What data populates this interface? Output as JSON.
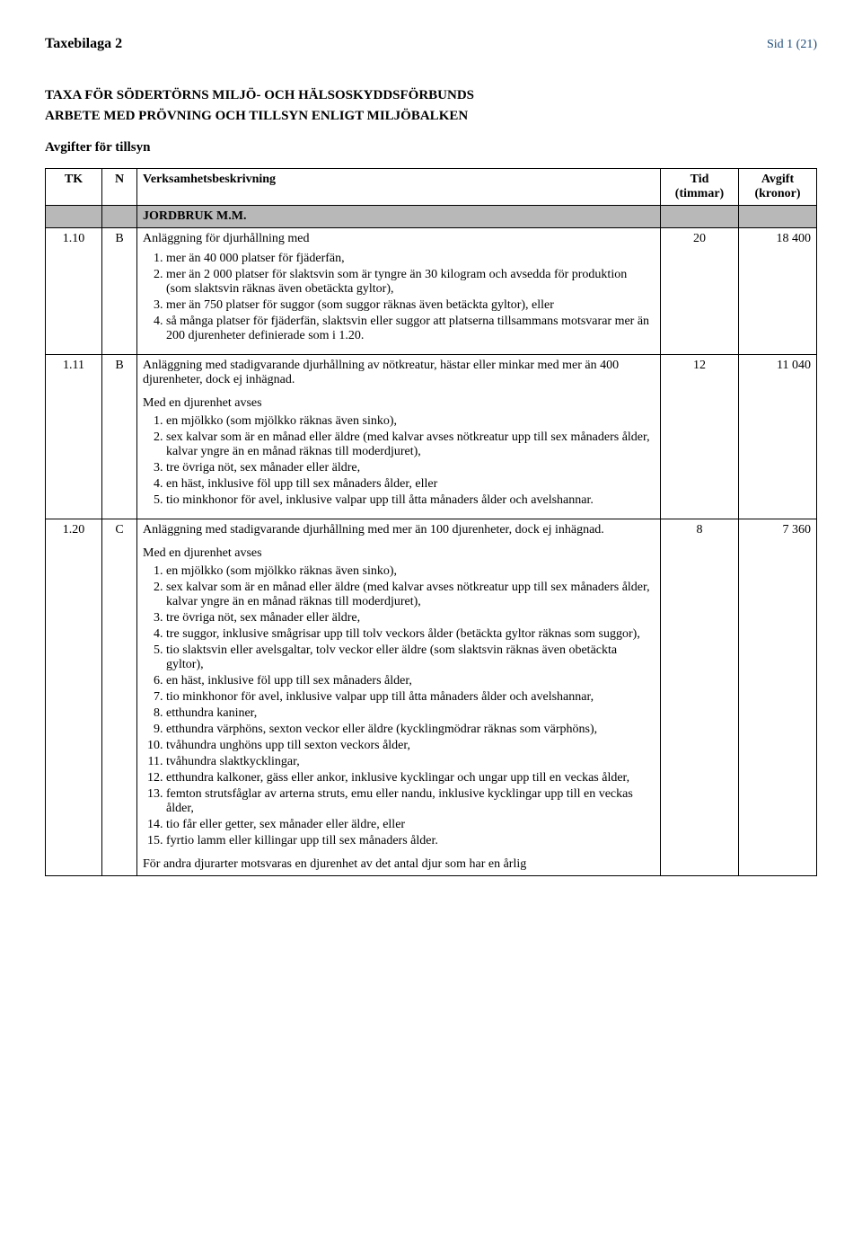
{
  "header": {
    "doc_title": "Taxebilaga 2",
    "page_label": "Sid 1 (21)"
  },
  "titles": {
    "main1": "TAXA FÖR SÖDERTÖRNS MILJÖ- OCH HÄLSOSKYDDSFÖRBUNDS",
    "main2": "ARBETE MED PRÖVNING OCH TILLSYN ENLIGT MILJÖBALKEN",
    "sub": "Avgifter för tillsyn"
  },
  "columns": {
    "tk": "TK",
    "n": "N",
    "desc": "Verksamhetsbeskrivning",
    "tid": "Tid (timmar)",
    "avg": "Avgift (kronor)"
  },
  "section_label": "JORDBRUK M.M.",
  "row110": {
    "tk": "1.10",
    "n": "B",
    "intro": "Anläggning för djurhållning med",
    "tid": "20",
    "avg": "18 400",
    "items": [
      "mer än 40 000 platser för fjäderfän,",
      "mer än 2 000 platser för slaktsvin som är tyngre än 30 kilogram och avsedda för produktion (som slaktsvin räknas även obetäckta gyltor),",
      "mer än 750 platser för suggor (som suggor räknas även betäckta gyltor), eller",
      "så många platser för fjäderfän, slaktsvin eller suggor att platserna tillsammans motsvarar mer än 200 djurenheter definierade som i 1.20."
    ]
  },
  "row111": {
    "tk": "1.11",
    "n": "B",
    "intro": "Anläggning med stadigvarande djurhållning av nötkreatur, hästar eller minkar med mer än 400 djurenheter, dock ej inhägnad.",
    "med_label": "Med en djurenhet avses",
    "tid": "12",
    "avg": "11 040",
    "items": [
      "en mjölkko (som mjölkko räknas även sinko),",
      "sex kalvar som är en månad eller äldre (med kalvar avses nötkreatur upp till sex månaders ålder, kalvar yngre än en månad räknas till moderdjuret),",
      "tre övriga nöt, sex månader eller äldre,",
      "en häst, inklusive föl upp till sex månaders ålder, eller",
      "tio minkhonor för avel, inklusive valpar upp till åtta månaders ålder och avelshannar."
    ]
  },
  "row120": {
    "tk": "1.20",
    "n": "C",
    "intro": "Anläggning med stadigvarande djurhållning med mer än 100 djurenheter, dock ej inhägnad.",
    "med_label": "Med en djurenhet avses",
    "tid": "8",
    "avg": "7 360",
    "items": [
      "en mjölkko (som mjölkko räknas även sinko),",
      "sex kalvar som är en månad eller äldre (med kalvar avses nötkreatur upp till sex månaders ålder, kalvar yngre än en månad räknas till moderdjuret),",
      "tre övriga nöt, sex månader eller äldre,",
      "tre suggor, inklusive smågrisar upp till tolv veckors ålder (betäckta gyltor räknas som suggor),",
      "tio slaktsvin eller avelsgaltar, tolv veckor eller äldre (som slaktsvin räknas även obetäckta gyltor),",
      "en häst, inklusive föl upp till sex månaders ålder,",
      "tio minkhonor för avel, inklusive valpar upp till åtta månaders ålder och avelshannar,",
      "etthundra kaniner,",
      "etthundra värphöns, sexton veckor eller äldre (kycklingmödrar räknas som värphöns),",
      "tvåhundra unghöns upp till sexton veckors ålder,",
      "tvåhundra slaktkycklingar,",
      "etthundra kalkoner, gäss eller ankor, inklusive kycklingar och ungar upp till en veckas ålder,",
      "femton strutsfåglar av arterna struts, emu eller nandu, inklusive kycklingar upp till en veckas ålder,",
      "tio får eller getter, sex månader eller äldre, eller",
      "fyrtio lamm eller killingar upp till sex månaders ålder."
    ],
    "footer": "För andra djurarter motsvaras en djurenhet av det antal djur som har en årlig"
  }
}
